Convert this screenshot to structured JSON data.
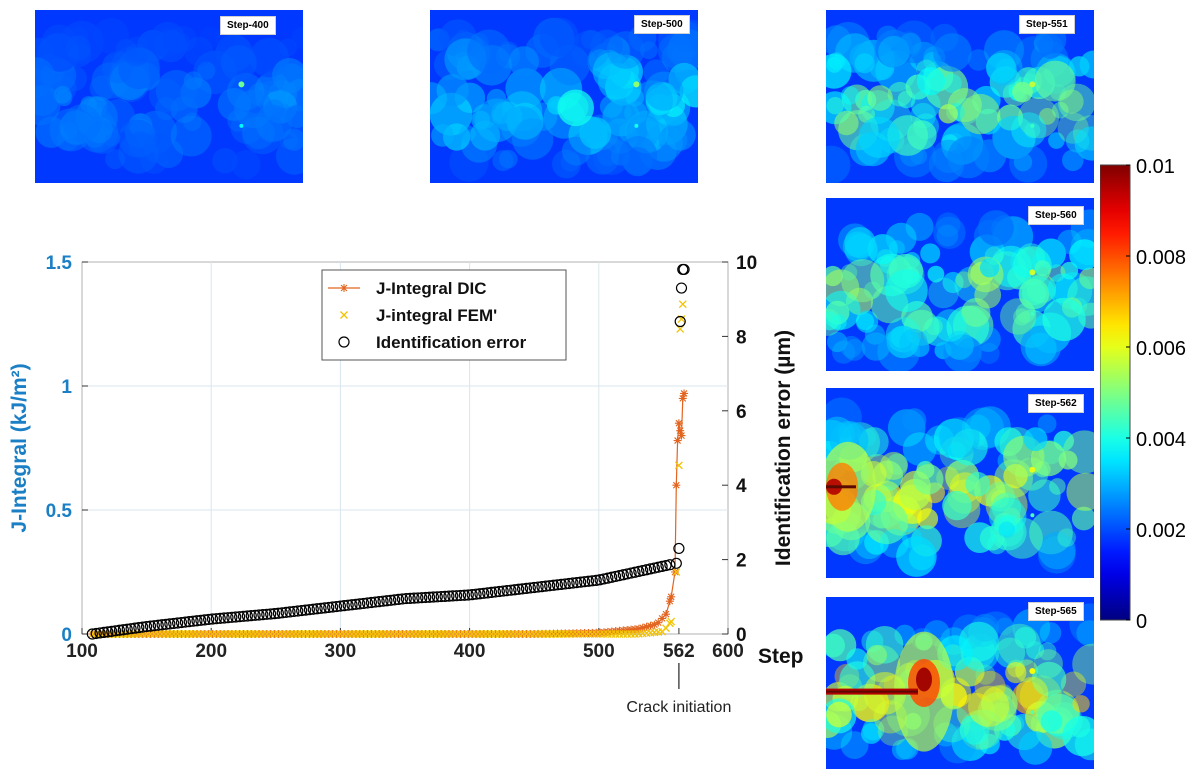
{
  "figure": {
    "heatmap_panels": [
      {
        "label": "Step-400",
        "intensity": 0.1,
        "crack": "none"
      },
      {
        "label": "Step-500",
        "intensity": 0.22,
        "crack": "none"
      },
      {
        "label": "Step-551",
        "intensity": 0.38,
        "crack": "none"
      },
      {
        "label": "Step-560",
        "intensity": 0.42,
        "crack": "none"
      },
      {
        "label": "Step-562",
        "intensity": 0.5,
        "crack": "initiation"
      },
      {
        "label": "Step-565",
        "intensity": 0.55,
        "crack": "propagated"
      }
    ],
    "colorbar": {
      "ticks": [
        "0",
        "0.002",
        "0.004",
        "0.006",
        "0.008",
        "0.01"
      ],
      "min": 0,
      "max": 0.01,
      "colormap": "jet"
    },
    "annotation": "Crack initiation"
  },
  "chart_data": {
    "type": "line",
    "xlabel": "Step",
    "ylabel_left": "J-Integral (kJ/m²)",
    "ylabel_right": "Identification error (µm)",
    "xlim": [
      100,
      600
    ],
    "ylim_left": [
      0,
      1.5
    ],
    "ylim_right": [
      0,
      10
    ],
    "x_ticks": [
      "100",
      "200",
      "300",
      "400",
      "500",
      "562",
      "600"
    ],
    "y_left_ticks": [
      "0",
      "0.5",
      "1",
      "1.5"
    ],
    "y_right_ticks": [
      "0",
      "2",
      "4",
      "6",
      "8",
      "10"
    ],
    "grid": true,
    "legend_position": "top-center",
    "left_axis_color": "#1a7fc4",
    "series": [
      {
        "name": "J-Integral DIC",
        "axis": "left",
        "marker": "asterisk",
        "color": "#e2641f",
        "x": [
          108,
          150,
          200,
          250,
          300,
          350,
          400,
          450,
          500,
          530,
          545,
          552,
          556,
          559,
          560,
          561,
          562,
          563,
          564,
          565,
          566
        ],
        "y": [
          0,
          0,
          0,
          0,
          0,
          0,
          0,
          0,
          0.005,
          0.02,
          0.04,
          0.08,
          0.15,
          0.25,
          0.6,
          0.78,
          0.85,
          0.82,
          0.8,
          0.95,
          0.97
        ]
      },
      {
        "name": "J-integral FEM'",
        "axis": "left",
        "marker": "x",
        "color": "#f2c300",
        "x": [
          108,
          150,
          200,
          250,
          300,
          350,
          400,
          450,
          500,
          530,
          550,
          556,
          560,
          562,
          563,
          564,
          565
        ],
        "y": [
          0,
          0,
          0,
          0,
          0,
          0,
          0,
          0,
          0,
          0,
          0.01,
          0.05,
          0.25,
          0.68,
          1.23,
          1.27,
          1.33
        ]
      },
      {
        "name": "Identification error",
        "axis": "right",
        "marker": "circle",
        "color": "#000000",
        "x": [
          108,
          150,
          200,
          250,
          300,
          350,
          400,
          450,
          500,
          540,
          560,
          562,
          563,
          564,
          565,
          566
        ],
        "y": [
          0,
          0.2,
          0.4,
          0.55,
          0.75,
          0.95,
          1.05,
          1.25,
          1.45,
          1.75,
          1.9,
          2.3,
          8.4,
          9.3,
          9.8,
          9.8
        ]
      }
    ]
  }
}
